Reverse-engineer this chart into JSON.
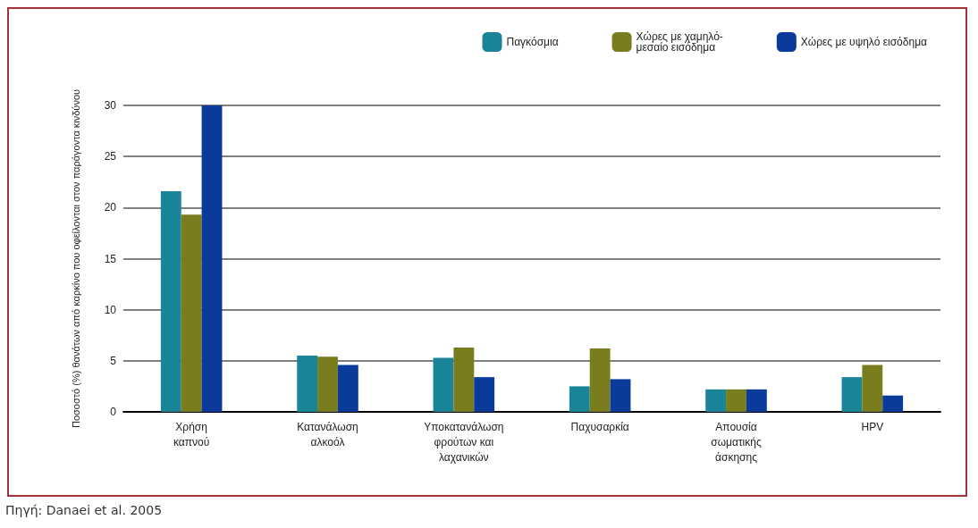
{
  "chart_data": {
    "type": "bar",
    "ylabel": "Ποσοστό (%) θανάτων από καρκίνο που οφείλονται στον παράγοντα κινδύνου",
    "categories": [
      "Χρήση\nκαπνού",
      "Κατανάλωση\nαλκοόλ",
      "Υποκατανάλωση\nφρούτων και\nλαχανικών",
      "Παχυσαρκία",
      "Απουσία\nσωματικής\nάσκησης",
      "HPV"
    ],
    "series": [
      {
        "name": "Παγκόσμια",
        "color": "#1a8599",
        "values": [
          21.6,
          5.5,
          5.3,
          2.5,
          2.2,
          3.4
        ]
      },
      {
        "name": "Χώρες με χαμηλό-\nμεσαίο εισόδημα",
        "color": "#7a7d1e",
        "values": [
          19.3,
          5.4,
          6.3,
          6.2,
          2.2,
          4.6
        ]
      },
      {
        "name": "Χώρες με υψηλό εισόδημα",
        "color": "#0a3a9a",
        "values": [
          30,
          4.6,
          3.4,
          3.2,
          2.2,
          1.6
        ]
      }
    ],
    "ylim": [
      0,
      30
    ],
    "yticks": [
      0,
      5,
      10,
      15,
      20,
      25,
      30
    ],
    "grid": "y",
    "legend": "top right",
    "annotations": [
      "Πηγή: Danaei et al. 2005"
    ]
  }
}
